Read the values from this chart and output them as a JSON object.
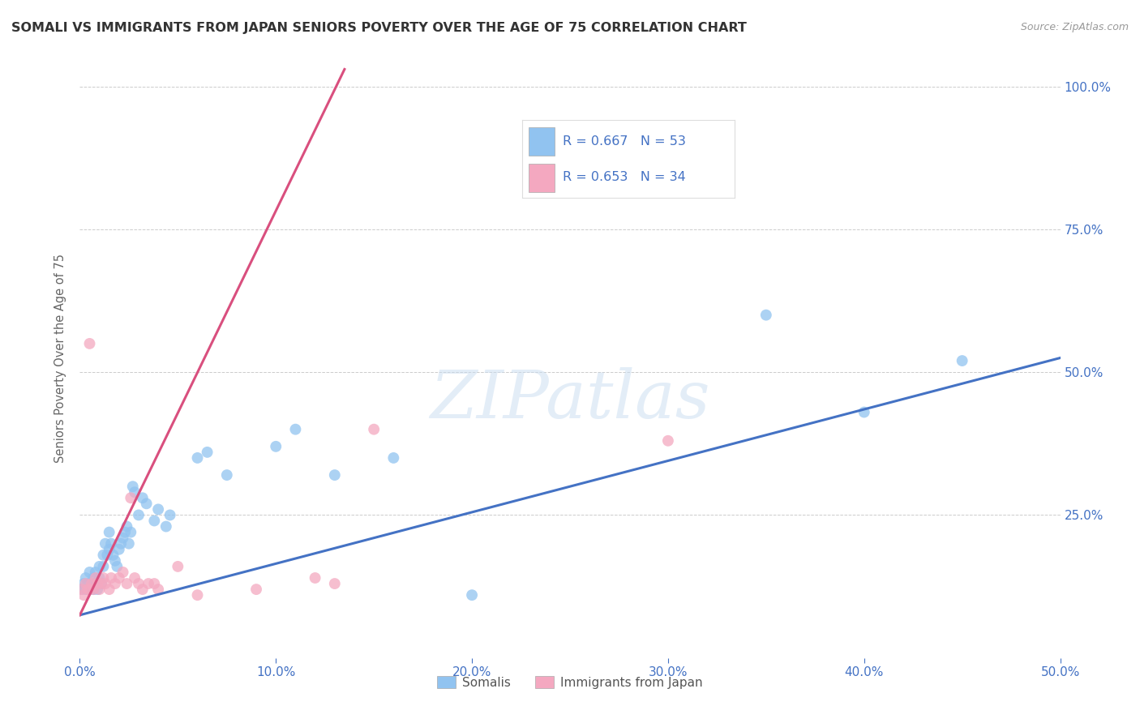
{
  "title": "SOMALI VS IMMIGRANTS FROM JAPAN SENIORS POVERTY OVER THE AGE OF 75 CORRELATION CHART",
  "source_text": "Source: ZipAtlas.com",
  "ylabel": "Seniors Poverty Over the Age of 75",
  "xlim": [
    0.0,
    0.5
  ],
  "ylim": [
    0.0,
    1.05
  ],
  "xtick_vals": [
    0.0,
    0.1,
    0.2,
    0.3,
    0.4,
    0.5
  ],
  "ytick_vals": [
    0.25,
    0.5,
    0.75,
    1.0
  ],
  "somali_color": "#91C3F0",
  "japan_color": "#F4A8C0",
  "somali_line_color": "#4472C4",
  "japan_line_color": "#D94F7E",
  "watermark_text": "ZIPatlas",
  "background_color": "#FFFFFF",
  "legend_somali_R": "R = 0.667",
  "legend_somali_N": "N = 53",
  "legend_japan_R": "R = 0.653",
  "legend_japan_N": "N = 34",
  "somali_line_x": [
    0.0,
    0.5
  ],
  "somali_line_y": [
    0.075,
    0.525
  ],
  "japan_line_x": [
    0.0,
    0.135
  ],
  "japan_line_y": [
    0.075,
    1.03
  ],
  "somali_scatter_x": [
    0.001,
    0.002,
    0.003,
    0.003,
    0.004,
    0.005,
    0.005,
    0.006,
    0.007,
    0.007,
    0.008,
    0.008,
    0.009,
    0.01,
    0.01,
    0.011,
    0.012,
    0.012,
    0.013,
    0.014,
    0.015,
    0.015,
    0.016,
    0.017,
    0.018,
    0.019,
    0.02,
    0.021,
    0.022,
    0.023,
    0.024,
    0.025,
    0.026,
    0.027,
    0.028,
    0.03,
    0.032,
    0.034,
    0.038,
    0.04,
    0.044,
    0.046,
    0.06,
    0.065,
    0.075,
    0.1,
    0.11,
    0.13,
    0.16,
    0.2,
    0.35,
    0.4,
    0.45
  ],
  "somali_scatter_y": [
    0.12,
    0.13,
    0.12,
    0.14,
    0.13,
    0.12,
    0.15,
    0.13,
    0.14,
    0.12,
    0.15,
    0.13,
    0.12,
    0.16,
    0.14,
    0.13,
    0.18,
    0.16,
    0.2,
    0.18,
    0.22,
    0.19,
    0.2,
    0.18,
    0.17,
    0.16,
    0.19,
    0.2,
    0.21,
    0.22,
    0.23,
    0.2,
    0.22,
    0.3,
    0.29,
    0.25,
    0.28,
    0.27,
    0.24,
    0.26,
    0.23,
    0.25,
    0.35,
    0.36,
    0.32,
    0.37,
    0.4,
    0.32,
    0.35,
    0.11,
    0.6,
    0.43,
    0.52
  ],
  "japan_scatter_x": [
    0.001,
    0.002,
    0.003,
    0.004,
    0.005,
    0.005,
    0.006,
    0.007,
    0.008,
    0.009,
    0.01,
    0.011,
    0.012,
    0.013,
    0.015,
    0.016,
    0.018,
    0.02,
    0.022,
    0.024,
    0.026,
    0.028,
    0.03,
    0.032,
    0.035,
    0.038,
    0.04,
    0.05,
    0.06,
    0.09,
    0.12,
    0.13,
    0.15,
    0.3
  ],
  "japan_scatter_y": [
    0.12,
    0.11,
    0.13,
    0.12,
    0.12,
    0.55,
    0.13,
    0.12,
    0.14,
    0.13,
    0.12,
    0.13,
    0.14,
    0.13,
    0.12,
    0.14,
    0.13,
    0.14,
    0.15,
    0.13,
    0.28,
    0.14,
    0.13,
    0.12,
    0.13,
    0.13,
    0.12,
    0.16,
    0.11,
    0.12,
    0.14,
    0.13,
    0.4,
    0.38
  ]
}
